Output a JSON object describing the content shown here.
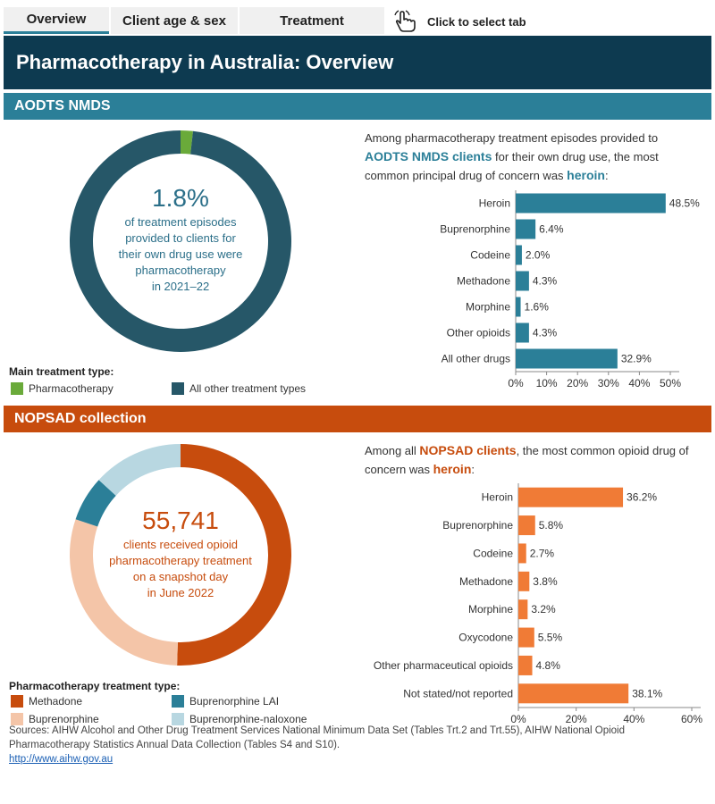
{
  "tabs": [
    {
      "label": "Overview"
    },
    {
      "label": "Client age & sex"
    },
    {
      "label": "Treatment"
    }
  ],
  "tab_hint": "Click to select tab",
  "title": "Pharmacotherapy in Australia: Overview",
  "aodts": {
    "header": "AODTS NMDS",
    "donut_value": "1.8%",
    "donut_lines": [
      "of treatment episodes",
      "provided to clients for",
      "their own drug use were",
      "pharmacotherapy",
      "in 2021–22"
    ],
    "intro": {
      "line1": "Among pharmacotherapy treatment episodes provided to",
      "highlight1": "AODTS NMDS clients",
      "line2_rest": " for their own drug use, the most",
      "line3_pre": "common principal drug of concern was ",
      "highlight2": "heroin",
      "line3_post": ":"
    },
    "legend_title": "Main treatment type:",
    "legend": [
      {
        "label": "Pharmacotherapy",
        "color": "#6aaa3a"
      },
      {
        "label": "All other treatment types",
        "color": "#265768"
      }
    ]
  },
  "nopsad": {
    "header": "NOPSAD collection",
    "donut_value": "55,741",
    "donut_lines": [
      "clients received opioid",
      "pharmacotherapy treatment",
      "on a snapshot day",
      "in June 2022"
    ],
    "intro": {
      "line1_pre": "Among all ",
      "highlight1": "NOPSAD clients",
      "line1_post": ", the most common opioid drug of",
      "line2_pre": "concern was ",
      "highlight2": "heroin",
      "line2_post": ":"
    },
    "legend_title": "Pharmacotherapy treatment type:",
    "legend": [
      {
        "label": "Methadone",
        "color": "#c74c0d"
      },
      {
        "label": "Buprenorphine LAI",
        "color": "#2b7f98"
      },
      {
        "label": "Buprenorphine",
        "color": "#f4c5a8"
      },
      {
        "label": "Buprenorphine-naloxone",
        "color": "#b8d7e1"
      }
    ]
  },
  "chart_data": [
    {
      "type": "pie",
      "hole": true,
      "values": [
        1.8,
        98.2
      ],
      "categories": [
        "Pharmacotherapy",
        "All other treatment types"
      ],
      "colors": [
        "#6aaa3a",
        "#265768"
      ]
    },
    {
      "type": "bar",
      "orientation": "horizontal",
      "categories": [
        "Heroin",
        "Buprenorphine",
        "Codeine",
        "Methadone",
        "Morphine",
        "Other opioids",
        "All other drugs"
      ],
      "values": [
        48.5,
        6.4,
        2.0,
        4.3,
        1.6,
        4.3,
        32.9
      ],
      "value_labels": [
        "48.5%",
        "6.4%",
        "2.0%",
        "4.3%",
        "1.6%",
        "4.3%",
        "32.9%"
      ],
      "xticks": [
        "0%",
        "10%",
        "20%",
        "30%",
        "40%",
        "50%"
      ],
      "xlim": [
        0,
        50
      ],
      "color": "#2b7f98"
    },
    {
      "type": "pie",
      "hole": true,
      "values": [
        50.5,
        6.6,
        29.7,
        13.2
      ],
      "categories": [
        "Methadone",
        "Buprenorphine LAI",
        "Buprenorphine",
        "Buprenorphine-naloxone"
      ],
      "order": [
        "Methadone",
        "Buprenorphine",
        "Buprenorphine LAI",
        "Buprenorphine-naloxone"
      ],
      "colors": [
        "#c74c0d",
        "#2b7f98",
        "#f4c5a8",
        "#b8d7e1"
      ]
    },
    {
      "type": "bar",
      "orientation": "horizontal",
      "categories": [
        "Heroin",
        "Buprenorphine",
        "Codeine",
        "Methadone",
        "Morphine",
        "Oxycodone",
        "Other pharmaceutical opioids",
        "Not stated/not reported"
      ],
      "values": [
        36.2,
        5.8,
        2.7,
        3.8,
        3.2,
        5.5,
        4.8,
        38.1
      ],
      "value_labels": [
        "36.2%",
        "5.8%",
        "2.7%",
        "3.8%",
        "3.2%",
        "5.5%",
        "4.8%",
        "38.1%"
      ],
      "xticks": [
        "0%",
        "20%",
        "40%",
        "60%"
      ],
      "xlim": [
        0,
        60
      ],
      "color": "#f07b36"
    }
  ],
  "source": {
    "text": "Sources: AIHW Alcohol and Other Drug Treatment Services National Minimum Data Set (Tables Trt.2 and Trt.55), AIHW National Opioid Pharmacotherapy Statistics Annual Data Collection (Tables S4 and S10).",
    "link": "http://www.aihw.gov.au"
  }
}
